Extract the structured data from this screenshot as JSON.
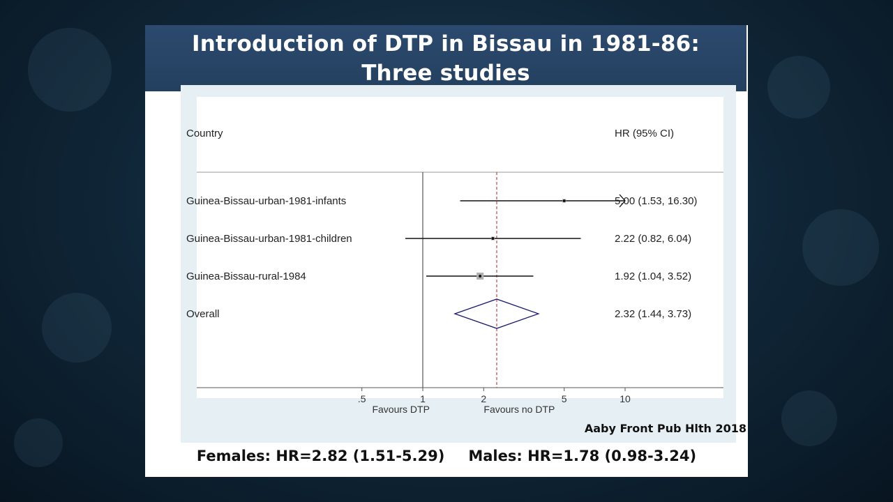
{
  "slide": {
    "title": "Introduction of DTP in Bissau in 1981-86:\nThree studies",
    "citation": "Aaby Front Pub Hlth 2018",
    "females_summary": "Females: HR=2.82 (1.51-5.29)",
    "males_summary": "Males: HR=1.78 (0.98-3.24)"
  },
  "chart_data": {
    "type": "forest",
    "columns": {
      "left_header": "Country",
      "right_header": "HR (95% CI)"
    },
    "x_scale": "log",
    "xlim": [
      0.33,
      22
    ],
    "x_ticks": [
      {
        "value": 0.5,
        "label": ".5"
      },
      {
        "value": 1,
        "label": "1"
      },
      {
        "value": 2,
        "label": "2"
      },
      {
        "value": 5,
        "label": "5"
      },
      {
        "value": 10,
        "label": "10"
      }
    ],
    "null_line": 1,
    "overall_line": 2.32,
    "axis_labels": {
      "left": "Favours DTP",
      "right": "Favours no DTP"
    },
    "studies": [
      {
        "label": "Guinea-Bissau-urban-1981-infants",
        "hr": 5.0,
        "lo": 1.53,
        "hi": 16.3,
        "ci_text": "5.00 (1.53, 16.30)",
        "weight": 0.3,
        "clip_high": 10
      },
      {
        "label": "Guinea-Bissau-urban-1981-children",
        "hr": 2.22,
        "lo": 0.82,
        "hi": 6.04,
        "ci_text": "2.22 (0.82, 6.04)",
        "weight": 0.3
      },
      {
        "label": "Guinea-Bissau-rural-1984",
        "hr": 1.92,
        "lo": 1.04,
        "hi": 3.52,
        "ci_text": "1.92 (1.04, 3.52)",
        "weight": 1.0
      }
    ],
    "overall": {
      "label": "Overall",
      "hr": 2.32,
      "lo": 1.44,
      "hi": 3.73,
      "ci_text": "2.32 (1.44, 3.73)"
    },
    "colors": {
      "diamond": "#1a1a6e",
      "overall_line": "#b22222",
      "marker": "#b0b0b0"
    }
  }
}
